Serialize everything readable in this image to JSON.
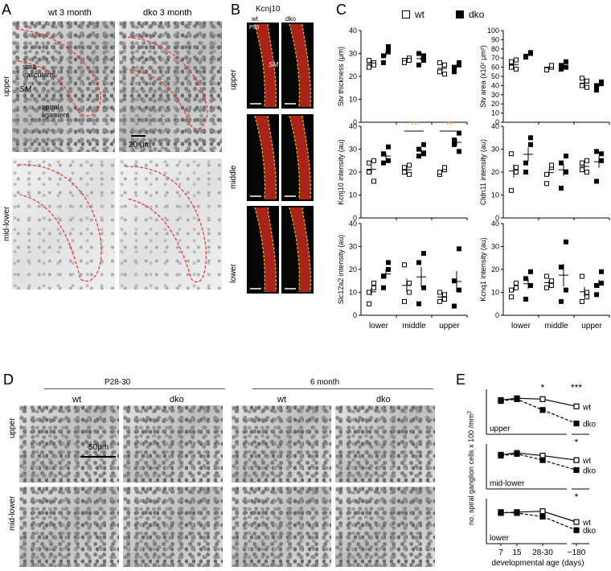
{
  "panelA": {
    "letter": "A",
    "col_wt": "wt 3 month",
    "col_dko": "dko  3 month",
    "row_upper": "upper",
    "row_midlower": "mid-lower",
    "lbl_stria": "stria\nvascularis",
    "lbl_sm": "SM",
    "lbl_spiral": "spiral\nligament",
    "scale": "20 μm"
  },
  "panelB": {
    "letter": "B",
    "title": "Kcnj10",
    "col_wt": "wt",
    "col_dko": "dko",
    "tag": "P90",
    "sm": "SM",
    "rows": [
      "upper",
      "middle",
      "lower"
    ]
  },
  "panelC": {
    "letter": "C",
    "legend_wt": "wt",
    "legend_dko": "dko",
    "xcats": [
      "lower",
      "middle",
      "upper"
    ],
    "sig_middle": "**",
    "sig_upper": "**",
    "accent": "#e07b20"
  },
  "panelD": {
    "letter": "D",
    "group1": "P28-30",
    "group2": "6 month",
    "cols": [
      "wt",
      "dko",
      "wt",
      "dko"
    ],
    "rows": [
      "upper",
      "mid-lower"
    ],
    "scale": "50μm"
  },
  "panelE": {
    "letter": "E",
    "ylabel": "no. spiral ganglion cells  x 100 /mm",
    "ylabel_sup": "2",
    "xlabel": "developmental age (days)",
    "xticks": [
      "7",
      "15",
      "28-30",
      "~180"
    ],
    "sub": [
      "upper",
      "mid-lower",
      "lower"
    ],
    "sig": [
      "*",
      "***",
      "*",
      "*"
    ],
    "wt": "wt",
    "dko": "dko"
  },
  "chart_data": [
    {
      "type": "scatter",
      "id": "C1",
      "ylabel": "Stv thickness (μm)",
      "ylim": [
        0,
        40
      ],
      "yticks": [
        0,
        10,
        20,
        30,
        40
      ],
      "categories": [
        "lower",
        "middle",
        "upper"
      ],
      "series": [
        {
          "name": "wt",
          "values": [
            [
              24,
              26,
              27,
              25
            ],
            [
              27,
              28,
              26,
              27
            ],
            [
              22,
              25,
              26,
              21
            ]
          ]
        },
        {
          "name": "dko",
          "values": [
            [
              26,
              33,
              29,
              31
            ],
            [
              25,
              29,
              30,
              27
            ],
            [
              22,
              25,
              24,
              26
            ]
          ]
        }
      ]
    },
    {
      "type": "scatter",
      "id": "C2",
      "ylabel": "Stv area (x10² μm²)",
      "ylim": [
        0,
        100
      ],
      "yticks": [
        0,
        10,
        20,
        30,
        40,
        50,
        60,
        70,
        80,
        90,
        100
      ],
      "categories": [
        "lower",
        "middle",
        "upper"
      ],
      "series": [
        {
          "name": "wt",
          "values": [
            [
              60,
              68,
              66,
              58
            ],
            [
              58,
              60,
              57,
              62
            ],
            [
              40,
              45,
              48,
              38
            ]
          ]
        },
        {
          "name": "dko",
          "values": [
            [
              72,
              76,
              71,
              75
            ],
            [
              62,
              66,
              58,
              60
            ],
            [
              35,
              42,
              40,
              44
            ]
          ]
        }
      ]
    },
    {
      "type": "scatter",
      "id": "C3",
      "ylabel": "Kcnj10 intensity (au)",
      "ylim": [
        0,
        40
      ],
      "yticks": [
        0,
        10,
        20,
        30,
        40
      ],
      "categories": [
        "lower",
        "middle",
        "upper"
      ],
      "series": [
        {
          "name": "wt",
          "values": [
            [
              20,
              25,
              24,
              16
            ],
            [
              20,
              23,
              22,
              19
            ],
            [
              19,
              21,
              20,
              22
            ]
          ]
        },
        {
          "name": "dko",
          "values": [
            [
              24,
              31,
              28,
              25
            ],
            [
              27,
              32,
              30,
              28
            ],
            [
              32,
              37,
              34,
              29
            ]
          ]
        }
      ]
    },
    {
      "type": "scatter",
      "id": "C4",
      "ylabel": "Cldn11 intensity (au)",
      "ylim": [
        0,
        40
      ],
      "yticks": [
        0,
        10,
        20,
        30,
        40
      ],
      "categories": [
        "lower",
        "middle",
        "upper"
      ],
      "series": [
        {
          "name": "wt",
          "values": [
            [
              12,
              20,
              28,
              22
            ],
            [
              15,
              22,
              19,
              23
            ],
            [
              21,
              25,
              24,
              20
            ]
          ]
        },
        {
          "name": "dko",
          "values": [
            [
              20,
              32,
              24,
              35
            ],
            [
              13,
              20,
              24,
              27
            ],
            [
              16,
              28,
              29,
              25
            ]
          ]
        }
      ]
    },
    {
      "type": "scatter",
      "id": "C5",
      "ylabel": "Slc12a2 intensity (au)",
      "ylim": [
        0,
        40
      ],
      "yticks": [
        0,
        10,
        20,
        30,
        40
      ],
      "categories": [
        "lower",
        "middle",
        "upper"
      ],
      "series": [
        {
          "name": "wt",
          "values": [
            [
              5,
              12,
              10,
              14
            ],
            [
              6,
              14,
              22,
              10
            ],
            [
              6,
              9,
              10,
              7
            ]
          ]
        },
        {
          "name": "dko",
          "values": [
            [
              12,
              20,
              17,
              23
            ],
            [
              5,
              12,
              23,
              27
            ],
            [
              4,
              11,
              15,
              29
            ]
          ]
        }
      ]
    },
    {
      "type": "scatter",
      "id": "C6",
      "ylabel": "Kcnq1 intensity (au)",
      "ylim": [
        0,
        40
      ],
      "yticks": [
        0,
        10,
        20,
        30,
        40
      ],
      "categories": [
        "lower",
        "middle",
        "upper"
      ],
      "series": [
        {
          "name": "wt",
          "values": [
            [
              8,
              12,
              11,
              14
            ],
            [
              12,
              15,
              17,
              13
            ],
            [
              6,
              10,
              17,
              8
            ]
          ]
        },
        {
          "name": "dko",
          "values": [
            [
              7,
              13,
              16,
              19
            ],
            [
              6,
              11,
              21,
              32
            ],
            [
              9,
              14,
              13,
              19
            ]
          ]
        }
      ]
    },
    {
      "type": "line",
      "id": "E-upper",
      "x": [
        "7",
        "15",
        "28-30",
        "~180"
      ],
      "ylim": [
        0,
        50
      ],
      "series": [
        {
          "name": "wt",
          "values": [
            38,
            40,
            39,
            31
          ]
        },
        {
          "name": "dko",
          "values": [
            37,
            39,
            27,
            12
          ]
        }
      ]
    },
    {
      "type": "line",
      "id": "E-mid-lower",
      "x": [
        "7",
        "15",
        "28-30",
        "~180"
      ],
      "ylim": [
        0,
        50
      ],
      "series": [
        {
          "name": "wt",
          "values": [
            38,
            40,
            37,
            32
          ]
        },
        {
          "name": "dko",
          "values": [
            37,
            39,
            32,
            21
          ]
        }
      ]
    },
    {
      "type": "line",
      "id": "E-lower",
      "x": [
        "7",
        "15",
        "28-30",
        "~180"
      ],
      "ylim": [
        0,
        50
      ],
      "series": [
        {
          "name": "wt",
          "values": [
            34,
            35,
            36,
            24
          ]
        },
        {
          "name": "dko",
          "values": [
            35,
            34,
            30,
            15
          ]
        }
      ]
    }
  ]
}
